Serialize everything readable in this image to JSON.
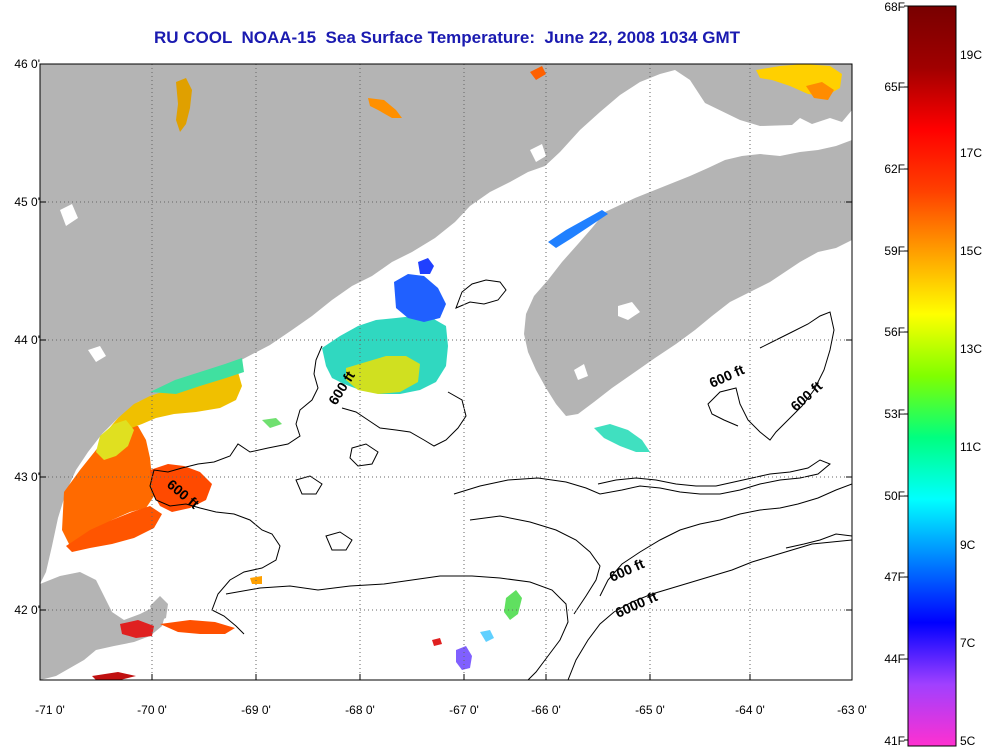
{
  "title": "RU COOL  NOAA-15  Sea Surface Temperature:  June 22, 2008 1034 GMT",
  "map": {
    "lat_labels": [
      "46 0'",
      "45 0'",
      "44 0'",
      "43 0'",
      "42 0'"
    ],
    "lon_labels": [
      "-71 0'",
      "-70 0'",
      "-69 0'",
      "-68 0'",
      "-67 0'",
      "-66 0'",
      "-65 0'",
      "-64 0'",
      "-63 0'"
    ],
    "contour_labels": [
      "600 ft",
      "600 ft",
      "600 ft",
      "600 ft",
      "600 ft",
      "6000 ft"
    ],
    "colors": {
      "land": "#b4b4b4",
      "water_nodata": "#ffffff",
      "grid": "#666666",
      "contour": "#000000",
      "title": "#1a1ab0"
    }
  },
  "colorbar": {
    "fahrenheit_labels": [
      "68F",
      "65F",
      "62F",
      "59F",
      "56F",
      "53F",
      "50F",
      "47F",
      "44F",
      "41F"
    ],
    "celsius_labels": [
      "19C",
      "17C",
      "15C",
      "13C",
      "11C",
      "9C",
      "7C",
      "5C"
    ],
    "gradient_colors": [
      "#ff30d0",
      "#a040ff",
      "#0000ff",
      "#0080ff",
      "#00ffff",
      "#00ff80",
      "#80ff00",
      "#ffff00",
      "#ffa000",
      "#ff4000",
      "#ff0000",
      "#a00000",
      "#780000"
    ]
  }
}
